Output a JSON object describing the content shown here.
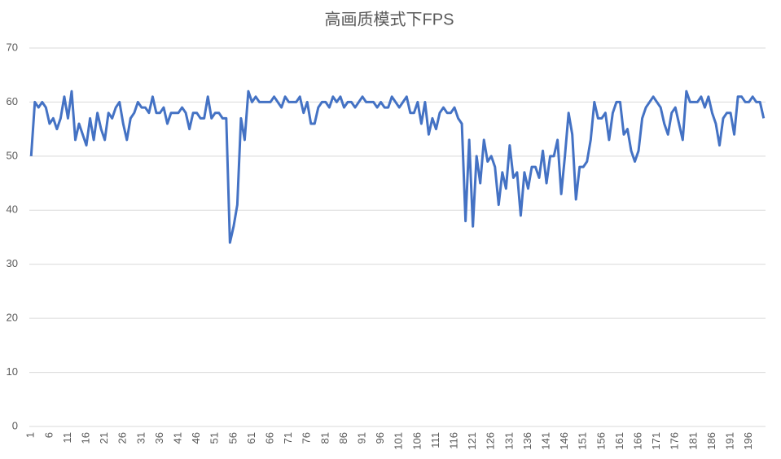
{
  "chart_data": {
    "type": "line",
    "title": "高画质模式下FPS",
    "categories": [
      "1",
      null,
      null,
      null,
      null,
      "6",
      null,
      null,
      null,
      null,
      "11",
      null,
      null,
      null,
      null,
      "16",
      null,
      null,
      null,
      null,
      "21",
      null,
      null,
      null,
      null,
      "26",
      null,
      null,
      null,
      null,
      "31",
      null,
      null,
      null,
      null,
      "36",
      null,
      null,
      null,
      null,
      "41",
      null,
      null,
      null,
      null,
      "46",
      null,
      null,
      null,
      null,
      "51",
      null,
      null,
      null,
      null,
      "56",
      null,
      null,
      null,
      null,
      "61",
      null,
      null,
      null,
      null,
      "66",
      null,
      null,
      null,
      null,
      "71",
      null,
      null,
      null,
      null,
      "76",
      null,
      null,
      null,
      null,
      "81",
      null,
      null,
      null,
      null,
      "86",
      null,
      null,
      null,
      null,
      "91",
      null,
      null,
      null,
      null,
      "96",
      null,
      null,
      null,
      null,
      "101",
      null,
      null,
      null,
      null,
      "106",
      null,
      null,
      null,
      null,
      "111",
      null,
      null,
      null,
      null,
      "116",
      null,
      null,
      null,
      null,
      "121",
      null,
      null,
      null,
      null,
      "126",
      null,
      null,
      null,
      null,
      "131",
      null,
      null,
      null,
      null,
      "136",
      null,
      null,
      null,
      null,
      "141",
      null,
      null,
      null,
      null,
      "146",
      null,
      null,
      null,
      null,
      "151",
      null,
      null,
      null,
      null,
      "156",
      null,
      null,
      null,
      null,
      "161",
      null,
      null,
      null,
      null,
      "166",
      null,
      null,
      null,
      null,
      "171",
      null,
      null,
      null,
      null,
      "176",
      null,
      null,
      null,
      null,
      "181",
      null,
      null,
      null,
      null,
      "186",
      null,
      null,
      null,
      null,
      "191",
      null,
      null,
      null,
      null,
      "196",
      null,
      null,
      null,
      null
    ],
    "values": [
      50,
      60,
      59,
      60,
      59,
      56,
      57,
      55,
      57,
      61,
      57,
      62,
      53,
      56,
      54,
      52,
      57,
      53,
      58,
      55,
      53,
      58,
      57,
      59,
      60,
      56,
      53,
      57,
      58,
      60,
      59,
      59,
      58,
      61,
      58,
      58,
      59,
      56,
      58,
      58,
      58,
      59,
      58,
      55,
      58,
      58,
      57,
      57,
      61,
      57,
      58,
      58,
      57,
      57,
      34,
      37,
      41,
      57,
      53,
      62,
      60,
      61,
      60,
      60,
      60,
      60,
      61,
      60,
      59,
      61,
      60,
      60,
      60,
      61,
      58,
      60,
      56,
      56,
      59,
      60,
      60,
      59,
      61,
      60,
      61,
      59,
      60,
      60,
      59,
      60,
      61,
      60,
      60,
      60,
      59,
      60,
      59,
      59,
      61,
      60,
      59,
      60,
      61,
      58,
      58,
      60,
      56,
      60,
      54,
      57,
      55,
      58,
      59,
      58,
      58,
      59,
      57,
      56,
      38,
      53,
      37,
      50,
      45,
      53,
      49,
      50,
      48,
      41,
      47,
      44,
      52,
      46,
      47,
      39,
      47,
      44,
      48,
      48,
      46,
      51,
      45,
      50,
      50,
      53,
      43,
      50,
      58,
      54,
      42,
      48,
      48,
      49,
      53,
      60,
      57,
      57,
      58,
      53,
      58,
      60,
      60,
      54,
      55,
      51,
      49,
      51,
      57,
      59,
      60,
      61,
      60,
      59,
      56,
      54,
      58,
      59,
      56,
      53,
      62,
      60,
      60,
      60,
      61,
      59,
      61,
      58,
      56,
      52,
      57,
      58,
      58,
      54,
      61,
      61,
      60,
      60,
      61,
      60,
      60,
      57
    ],
    "color": "#4472c4",
    "ylim": [
      0,
      70
    ],
    "yticks": [
      0,
      10,
      20,
      30,
      40,
      50,
      60,
      70
    ],
    "grid": true
  }
}
